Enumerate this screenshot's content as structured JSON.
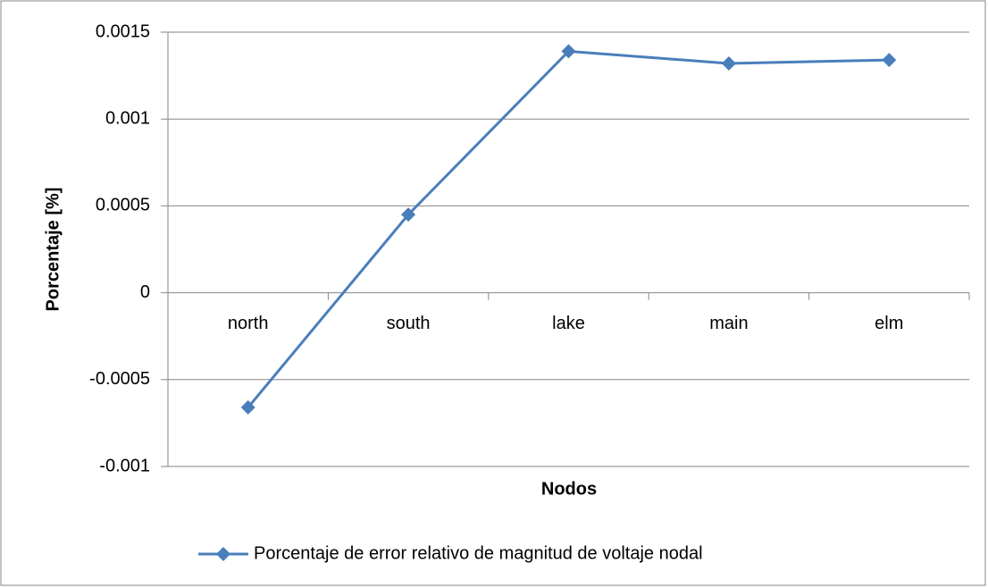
{
  "chart_data": {
    "type": "line",
    "categories": [
      "north",
      "south",
      "lake",
      "main",
      "elm"
    ],
    "series": [
      {
        "name": "Porcentaje de error relativo de magnitud de voltaje nodal",
        "color": "#4a7ebb",
        "values": [
          -0.00066,
          0.00045,
          0.00139,
          0.00132,
          0.00134
        ]
      }
    ],
    "ylim": [
      -0.001,
      0.0015
    ],
    "yticks": [
      -0.001,
      -0.0005,
      0,
      0.0005,
      0.001,
      0.0015
    ],
    "ylabel": "Porcentaje [%]",
    "xlabel": "Nodos",
    "grid": true,
    "legend": "bottom"
  }
}
